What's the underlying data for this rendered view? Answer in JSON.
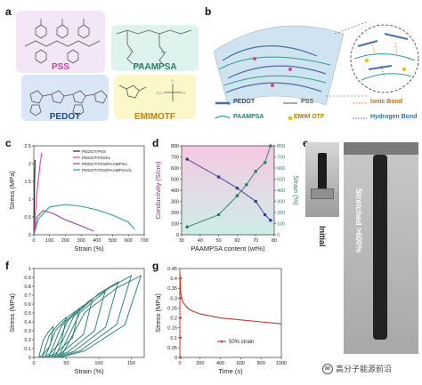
{
  "panels": {
    "a": "a",
    "b": "b",
    "c": "c",
    "d": "d",
    "e": "e",
    "f": "f",
    "g": "g"
  },
  "chem": {
    "pss": "PSS",
    "paampsa": "PAAMPSA",
    "pedot": "PEDOT",
    "emimotf": "EMIMOTF"
  },
  "legend_b": {
    "pedot": "PEDOT",
    "pss": "PSS",
    "ionic": "Ionic Bond",
    "paampsa": "PAAMPSA",
    "emim": "EMIM OTF",
    "hbond": "Hydrogen Bond"
  },
  "photo_e": {
    "initial": "Initial",
    "stretched": "Stretched >600%"
  },
  "watermark": {
    "text": "高分子能源前沿"
  },
  "chart_data": [
    {
      "panel": "c",
      "type": "line",
      "xlabel": "Strain (%)",
      "ylabel": "Stress (MPa)",
      "xlim": [
        0,
        700
      ],
      "ylim": [
        0,
        2.5
      ],
      "xticks": [
        "0",
        "100",
        "200",
        "300",
        "400",
        "500",
        "600",
        "700"
      ],
      "yticks": [
        "0",
        "0.5",
        "1",
        "1.5",
        "2",
        "2.5"
      ],
      "legend": [
        "PEDOT:PSS",
        "PEDOT:PSS/IL",
        "PEDOT:PSS/PAAMPSA",
        "PEDOT:PSS/PAAMPSA/IL"
      ],
      "colors": [
        "#222222",
        "#e0409a",
        "#8e44ad",
        "#2a9d8f"
      ],
      "series": [
        {
          "name": "PEDOT:PSS",
          "x": [
            0,
            5,
            8
          ],
          "y": [
            0,
            1.6,
            2.1
          ]
        },
        {
          "name": "PEDOT:PSS/IL",
          "x": [
            0,
            20,
            40,
            50
          ],
          "y": [
            0,
            1.2,
            2.0,
            2.3
          ]
        },
        {
          "name": "PEDOT:PSS/PAAMPSA",
          "x": [
            0,
            20,
            60,
            120,
            200,
            300,
            380
          ],
          "y": [
            0,
            0.5,
            0.68,
            0.6,
            0.42,
            0.25,
            0.1
          ]
        },
        {
          "name": "PEDOT:PSS/PAAMPSA/IL",
          "x": [
            0,
            30,
            100,
            200,
            300,
            400,
            500,
            600,
            640
          ],
          "y": [
            0,
            0.45,
            0.78,
            0.85,
            0.8,
            0.7,
            0.55,
            0.35,
            0.15
          ]
        }
      ]
    },
    {
      "panel": "d",
      "type": "line",
      "xlabel": "PAAMPSA content (wt%)",
      "ylabel": "Conductivity (S/cm)",
      "y2label": "Strain (%)",
      "xlim": [
        30,
        80
      ],
      "ylim": [
        0,
        800
      ],
      "y2lim": [
        0,
        800
      ],
      "xticks": [
        "30",
        "40",
        "50",
        "60",
        "70",
        "80"
      ],
      "yticks": [
        "0",
        "100",
        "200",
        "300",
        "400",
        "500",
        "600",
        "700",
        "800"
      ],
      "y2ticks": [
        "0",
        "100",
        "200",
        "300",
        "400",
        "500",
        "600",
        "700",
        "800"
      ],
      "series": [
        {
          "name": "Conductivity",
          "x": [
            33,
            50,
            60,
            70,
            75,
            78
          ],
          "y": [
            680,
            520,
            420,
            300,
            180,
            130
          ]
        },
        {
          "name": "Strain",
          "x": [
            33,
            50,
            60,
            65,
            70,
            75,
            78
          ],
          "y": [
            70,
            180,
            350,
            450,
            570,
            650,
            800
          ]
        }
      ]
    },
    {
      "panel": "f",
      "type": "line",
      "xlabel": "Strain (%)",
      "ylabel": "Stress (MPa)",
      "xlim": [
        0,
        170
      ],
      "ylim": [
        0,
        1
      ],
      "xticks": [
        "0",
        "50",
        "100",
        "150"
      ],
      "yticks": [
        "0",
        "0.1",
        "0.2",
        "0.3",
        "0.4",
        "0.5",
        "0.6",
        "0.7",
        "0.8",
        "0.9",
        "1"
      ],
      "loops_max_strain": [
        30,
        50,
        70,
        90,
        110,
        130,
        150,
        165
      ],
      "loops_max_stress": [
        0.35,
        0.45,
        0.55,
        0.65,
        0.75,
        0.85,
        0.92,
        0.92
      ]
    },
    {
      "panel": "g",
      "type": "line",
      "xlabel": "Time (s)",
      "ylabel": "Stress (MPa)",
      "xlim": [
        0,
        1000
      ],
      "ylim": [
        0,
        0.45
      ],
      "xticks": [
        "0",
        "200",
        "400",
        "600",
        "800",
        "1000"
      ],
      "yticks": [
        "0",
        "0.05",
        "0.1",
        "0.15",
        "0.2",
        "0.25",
        "0.3",
        "0.35",
        "0.4",
        "0.45"
      ],
      "legend": [
        "50% strain"
      ],
      "series": [
        {
          "name": "50% strain",
          "x": [
            0,
            10,
            30,
            60,
            100,
            200,
            400,
            600,
            800,
            1000
          ],
          "y": [
            0.43,
            0.32,
            0.28,
            0.26,
            0.24,
            0.22,
            0.2,
            0.19,
            0.18,
            0.17
          ]
        }
      ]
    }
  ]
}
